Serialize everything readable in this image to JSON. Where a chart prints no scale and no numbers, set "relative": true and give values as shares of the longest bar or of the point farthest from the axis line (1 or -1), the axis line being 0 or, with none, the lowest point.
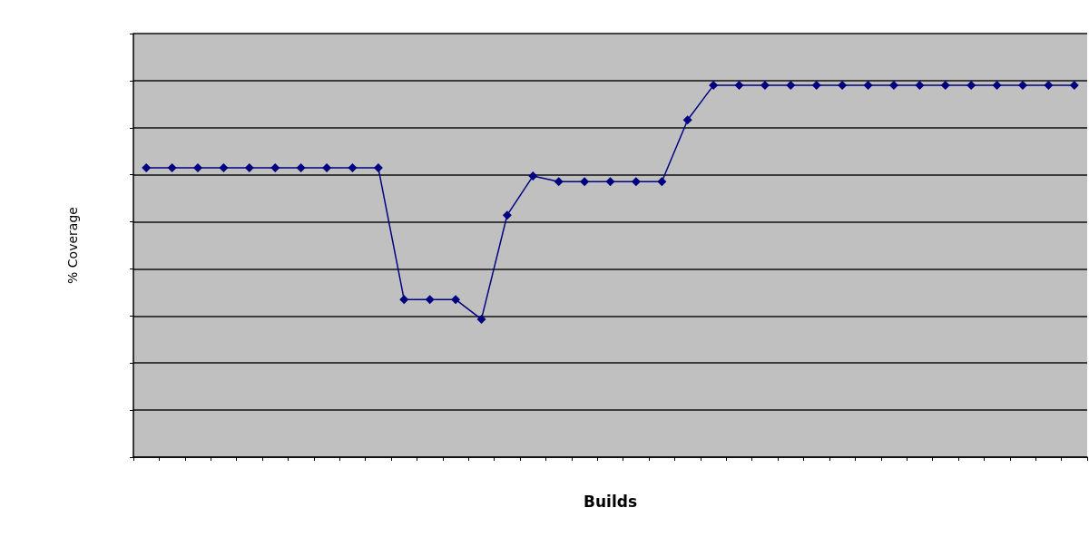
{
  "chart_data": {
    "type": "line",
    "xlabel": "Builds",
    "ylabel": "% Coverage",
    "relative": true,
    "grid": "y",
    "marker": "diamond",
    "line_style": "solid",
    "categories": [
      null,
      null,
      null,
      null,
      null,
      null,
      null,
      null,
      null,
      null,
      null,
      null,
      null,
      null,
      null,
      null,
      null,
      null,
      null,
      null,
      null,
      null,
      null,
      null,
      null,
      null,
      null,
      null,
      null,
      null,
      null,
      null,
      null,
      null,
      null,
      null,
      null
    ],
    "series": [
      {
        "color": "#000080",
        "values": [
          0.778,
          0.778,
          0.778,
          0.778,
          0.778,
          0.778,
          0.778,
          0.778,
          0.778,
          0.778,
          0.424,
          0.424,
          0.424,
          0.371,
          0.651,
          0.756,
          0.741,
          0.741,
          0.741,
          0.741,
          0.741,
          0.907,
          1,
          1,
          1,
          1,
          1,
          1,
          1,
          1,
          1,
          1,
          1,
          1,
          1,
          1,
          1
        ]
      }
    ]
  }
}
